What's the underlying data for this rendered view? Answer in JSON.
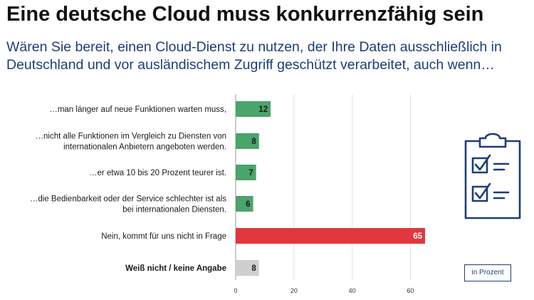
{
  "title": "Eine deutsche Cloud muss konkurrenzfähig sein",
  "subtitle": "Wären Sie bereit, einen Cloud-Dienst zu nutzen, der Ihre Daten ausschließlich in Deutschland und vor ausländischem Zugriff geschützt verarbeitet, auch wenn…",
  "unit_label": "in Prozent",
  "icon": "clipboard-checklist-icon",
  "colors": {
    "green": "#4aa46b",
    "red": "#e0383e",
    "grey": "#cfcfcf",
    "navy": "#1d3d7a"
  },
  "chart_data": {
    "type": "bar",
    "orientation": "horizontal",
    "categories": [
      [
        "…man länger auf neue Funktionen warten muss,"
      ],
      [
        "…nicht alle Funktionen im Vergleich zu Diensten von",
        "internationalen Anbietern angeboten werden."
      ],
      [
        "…er etwa 10 bis 20 Prozent teurer ist."
      ],
      [
        "…die Bedienbarkeit oder der Service schlechter ist als",
        "bei internationalen Diensten."
      ],
      [
        "Nein, kommt für uns nicht in Frage"
      ],
      [
        "Weiß nicht / keine Angabe"
      ]
    ],
    "values": [
      12,
      8,
      7,
      6,
      65,
      8
    ],
    "bar_colors": [
      "green",
      "green",
      "green",
      "green",
      "red",
      "grey"
    ],
    "label_bold": [
      false,
      false,
      false,
      false,
      false,
      true
    ],
    "value_label_colors": [
      "#1a1a1a",
      "#1a1a1a",
      "#1a1a1a",
      "#1a1a1a",
      "#ffffff",
      "#1a1a1a"
    ],
    "x_ticks": [
      0,
      20,
      40,
      60
    ],
    "xlim": [
      0,
      65
    ],
    "grid": true,
    "unit": "in Prozent"
  }
}
